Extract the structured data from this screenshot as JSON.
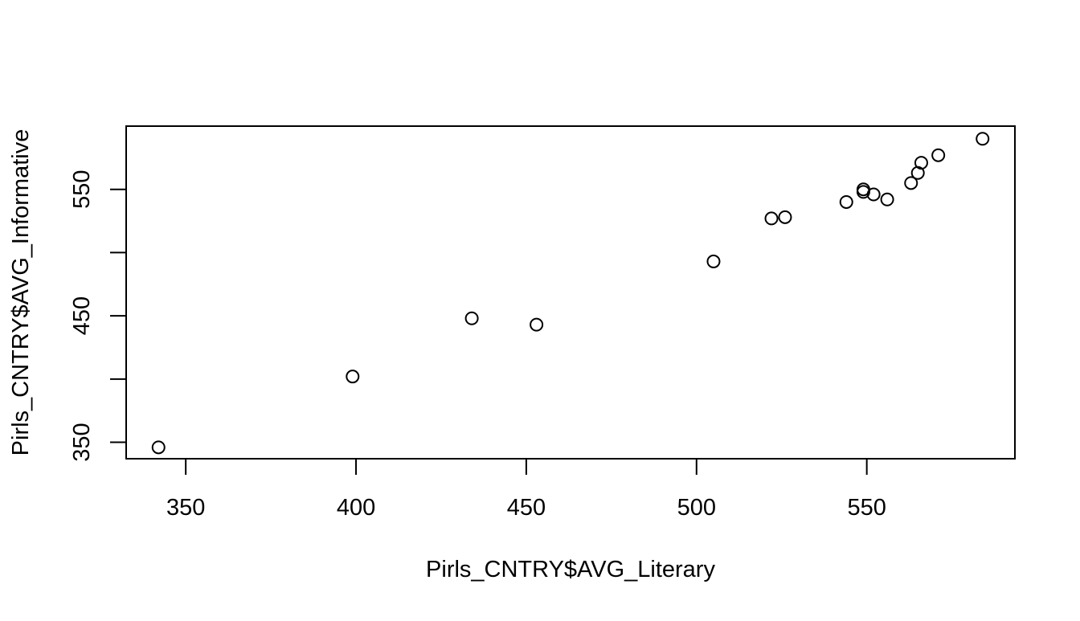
{
  "chart_data": {
    "type": "scatter",
    "title": "",
    "xlabel": "Pirls_CNTRY$AVG_Literary",
    "ylabel": "Pirls_CNTRY$AVG_Informative",
    "xlim": [
      332.5,
      593.5
    ],
    "ylim": [
      337,
      600
    ],
    "xticks": [
      350,
      400,
      450,
      500,
      550
    ],
    "xtick_labels": [
      "350",
      "400",
      "450",
      "500",
      "550"
    ],
    "yticks": [
      350,
      400,
      450,
      500,
      550
    ],
    "ytick_labels": [
      "350",
      "",
      "450",
      "",
      "550"
    ],
    "grid": false,
    "legend": "none",
    "marker": "open-circle",
    "x": [
      342,
      399,
      434,
      453,
      505,
      522,
      526,
      544,
      549,
      549,
      552,
      556,
      563,
      565,
      566,
      571,
      584
    ],
    "y": [
      346,
      402,
      448,
      443,
      493,
      527,
      528,
      540,
      548,
      550,
      546,
      542,
      555,
      563,
      571,
      577,
      590
    ]
  }
}
